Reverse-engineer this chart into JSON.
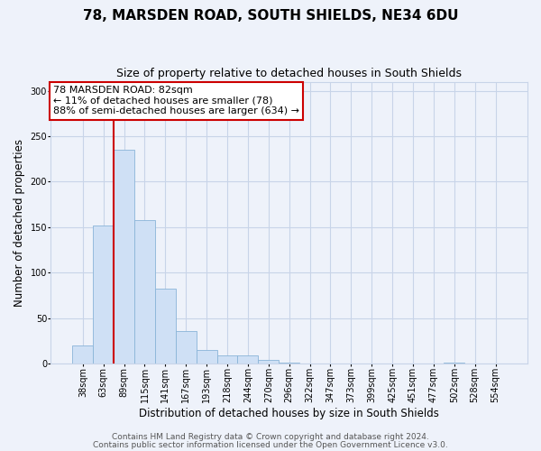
{
  "title": "78, MARSDEN ROAD, SOUTH SHIELDS, NE34 6DU",
  "subtitle": "Size of property relative to detached houses in South Shields",
  "xlabel": "Distribution of detached houses by size in South Shields",
  "ylabel": "Number of detached properties",
  "bin_labels": [
    "38sqm",
    "63sqm",
    "89sqm",
    "115sqm",
    "141sqm",
    "167sqm",
    "193sqm",
    "218sqm",
    "244sqm",
    "270sqm",
    "296sqm",
    "322sqm",
    "347sqm",
    "373sqm",
    "399sqm",
    "425sqm",
    "451sqm",
    "477sqm",
    "502sqm",
    "528sqm",
    "554sqm"
  ],
  "bin_counts": [
    20,
    152,
    235,
    158,
    82,
    36,
    15,
    9,
    9,
    4,
    1,
    0,
    0,
    0,
    0,
    0,
    0,
    0,
    1,
    0,
    0
  ],
  "bar_color": "#cfe0f5",
  "bar_edge_color": "#8ab4d8",
  "vline_x_index": 1.5,
  "vline_color": "#cc0000",
  "ylim": [
    0,
    310
  ],
  "yticks": [
    0,
    50,
    100,
    150,
    200,
    250,
    300
  ],
  "annotation_box_text": "78 MARSDEN ROAD: 82sqm\n← 11% of detached houses are smaller (78)\n88% of semi-detached houses are larger (634) →",
  "annotation_box_color": "#ffffff",
  "annotation_box_edge_color": "#cc0000",
  "footer_line1": "Contains HM Land Registry data © Crown copyright and database right 2024.",
  "footer_line2": "Contains public sector information licensed under the Open Government Licence v3.0.",
  "background_color": "#eef2fa",
  "grid_color": "#c8d4e8",
  "title_fontsize": 11,
  "subtitle_fontsize": 9,
  "xlabel_fontsize": 8.5,
  "ylabel_fontsize": 8.5,
  "tick_fontsize": 7,
  "annotation_fontsize": 8,
  "footer_fontsize": 6.5
}
